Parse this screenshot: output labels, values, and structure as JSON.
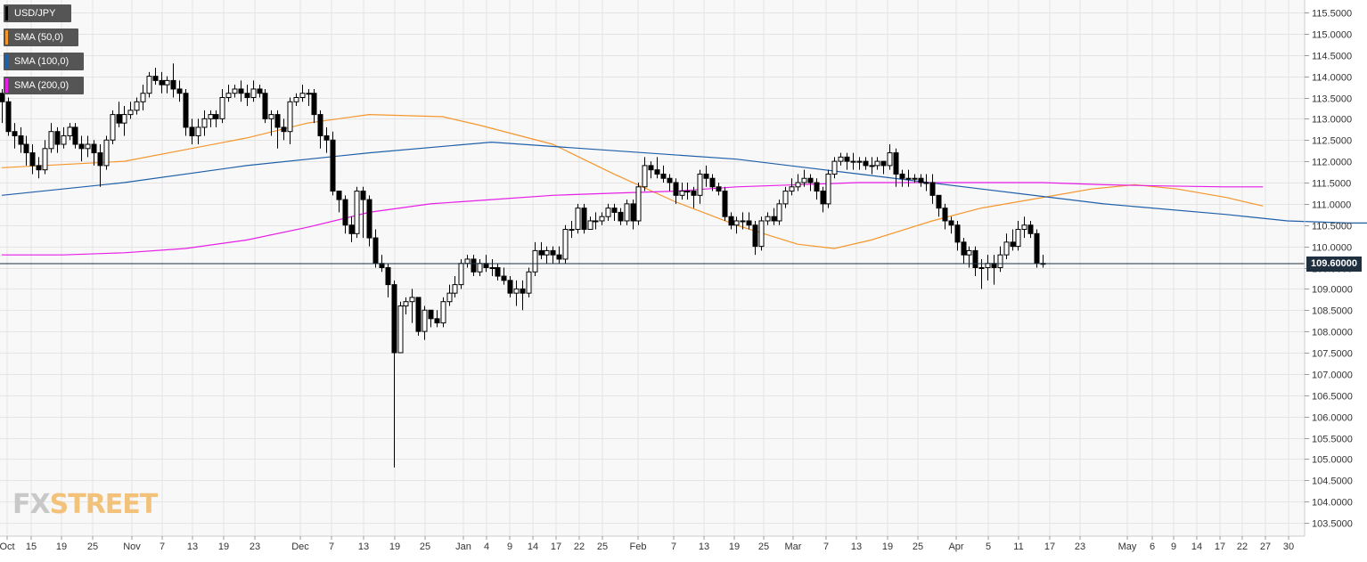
{
  "legend": [
    {
      "label": "USD/JPY",
      "color": "#000000"
    },
    {
      "label": "SMA (50,0)",
      "color": "#f5962c"
    },
    {
      "label": "SMA (100,0)",
      "color": "#1f5fa8"
    },
    {
      "label": "SMA (200,0)",
      "color": "#e61ee6"
    }
  ],
  "last_price_label": "109.60000",
  "watermark": {
    "fx": "FX",
    "street": "STREET"
  },
  "chart_data": {
    "type": "candlestick",
    "instrument": "USD/JPY",
    "ylim": [
      103.1,
      115.75
    ],
    "y_ticks": [
      "115.5000",
      "115.0000",
      "114.5000",
      "114.0000",
      "113.5000",
      "113.0000",
      "112.5000",
      "112.0000",
      "111.5000",
      "111.0000",
      "110.5000",
      "110.0000",
      "109.5000",
      "109.0000",
      "108.5000",
      "108.0000",
      "107.5000",
      "107.0000",
      "106.5000",
      "106.0000",
      "105.5000",
      "105.0000",
      "104.5000",
      "104.0000",
      "103.5000"
    ],
    "x_ticks": [
      "Oct",
      "15",
      "19",
      "25",
      "Nov",
      "7",
      "13",
      "19",
      "23",
      "Dec",
      "7",
      "13",
      "19",
      "25",
      "Jan",
      "4",
      "9",
      "14",
      "17",
      "22",
      "25",
      "Feb",
      "7",
      "13",
      "19",
      "25",
      "Mar",
      "7",
      "13",
      "19",
      "25",
      "Apr",
      "5",
      "11",
      "17",
      "23",
      "May",
      "6",
      "9",
      "14",
      "17",
      "22",
      "27",
      "30"
    ],
    "last_price": 109.6,
    "grid": true,
    "candles": [
      [
        113.6,
        113.4,
        113.7,
        112.9
      ],
      [
        113.4,
        112.7,
        113.5,
        112.6
      ],
      [
        112.7,
        112.6,
        112.9,
        112.3
      ],
      [
        112.6,
        112.4,
        112.8,
        112.2
      ],
      [
        112.4,
        112.2,
        112.6,
        111.9
      ],
      [
        112.2,
        111.9,
        112.4,
        111.7
      ],
      [
        111.9,
        111.8,
        112.1,
        111.6
      ],
      [
        111.8,
        112.3,
        112.5,
        111.7
      ],
      [
        112.3,
        112.7,
        112.9,
        112.2
      ],
      [
        112.7,
        112.4,
        112.8,
        112.2
      ],
      [
        112.4,
        112.6,
        112.8,
        112.3
      ],
      [
        112.6,
        112.8,
        112.9,
        112.5
      ],
      [
        112.8,
        112.4,
        112.9,
        112.3
      ],
      [
        112.4,
        112.3,
        112.6,
        112.0
      ],
      [
        112.3,
        112.4,
        112.6,
        112.1
      ],
      [
        112.4,
        112.2,
        112.5,
        111.9
      ],
      [
        112.2,
        111.9,
        112.4,
        111.4
      ],
      [
        111.9,
        112.5,
        112.6,
        111.8
      ],
      [
        112.5,
        113.1,
        113.2,
        112.4
      ],
      [
        113.1,
        112.9,
        113.4,
        112.8
      ],
      [
        112.9,
        113.1,
        113.3,
        112.6
      ],
      [
        113.1,
        113.2,
        113.4,
        113.0
      ],
      [
        113.2,
        113.4,
        113.5,
        113.1
      ],
      [
        113.4,
        113.6,
        113.8,
        113.2
      ],
      [
        113.6,
        114.0,
        114.1,
        113.5
      ],
      [
        114.0,
        113.9,
        114.2,
        113.8
      ],
      [
        113.9,
        113.8,
        114.1,
        113.6
      ],
      [
        113.8,
        113.9,
        114.0,
        113.6
      ],
      [
        113.9,
        113.7,
        114.3,
        113.5
      ],
      [
        113.7,
        113.6,
        113.9,
        113.4
      ],
      [
        113.6,
        112.8,
        113.7,
        112.6
      ],
      [
        112.8,
        112.6,
        113.0,
        112.4
      ],
      [
        112.6,
        112.8,
        113.0,
        112.4
      ],
      [
        112.8,
        113.0,
        113.2,
        112.6
      ],
      [
        113.0,
        113.1,
        113.2,
        112.8
      ],
      [
        113.1,
        113.0,
        113.2,
        112.8
      ],
      [
        113.0,
        113.5,
        113.7,
        112.9
      ],
      [
        113.5,
        113.6,
        113.8,
        113.4
      ],
      [
        113.6,
        113.7,
        113.8,
        113.5
      ],
      [
        113.7,
        113.6,
        113.9,
        113.4
      ],
      [
        113.6,
        113.5,
        113.8,
        113.3
      ],
      [
        113.5,
        113.7,
        113.9,
        113.4
      ],
      [
        113.7,
        113.6,
        113.8,
        113.5
      ],
      [
        113.6,
        113.0,
        113.7,
        112.9
      ],
      [
        113.0,
        113.1,
        113.2,
        112.6
      ],
      [
        113.1,
        112.8,
        113.2,
        112.3
      ],
      [
        112.8,
        112.7,
        113.0,
        112.5
      ],
      [
        112.7,
        113.4,
        113.5,
        112.4
      ],
      [
        113.4,
        113.5,
        113.6,
        113.3
      ],
      [
        113.5,
        113.6,
        113.8,
        113.4
      ],
      [
        113.6,
        113.6,
        113.7,
        113.3
      ],
      [
        113.6,
        113.1,
        113.7,
        112.9
      ],
      [
        113.1,
        112.6,
        113.2,
        112.3
      ],
      [
        112.6,
        112.5,
        112.8,
        112.2
      ],
      [
        112.5,
        111.3,
        112.7,
        111.2
      ],
      [
        111.3,
        111.1,
        111.3,
        110.8
      ],
      [
        111.1,
        110.5,
        111.2,
        110.3
      ],
      [
        110.5,
        110.3,
        110.7,
        110.1
      ],
      [
        110.3,
        111.3,
        111.4,
        110.2
      ],
      [
        111.3,
        111.1,
        111.4,
        110.2
      ],
      [
        111.1,
        110.2,
        111.2,
        110.0
      ],
      [
        110.2,
        109.6,
        110.4,
        109.5
      ],
      [
        109.6,
        109.5,
        109.8,
        109.4
      ],
      [
        109.5,
        109.1,
        109.6,
        108.8
      ],
      [
        109.1,
        107.5,
        109.2,
        104.8
      ],
      [
        107.5,
        108.6,
        108.7,
        107.5
      ],
      [
        108.6,
        108.7,
        108.8,
        108.4
      ],
      [
        108.7,
        108.8,
        109.0,
        108.2
      ],
      [
        108.8,
        108.0,
        108.8,
        107.9
      ],
      [
        108.0,
        108.5,
        108.6,
        107.8
      ],
      [
        108.5,
        108.3,
        108.5,
        108.1
      ],
      [
        108.3,
        108.2,
        108.5,
        108.1
      ],
      [
        108.2,
        108.7,
        108.8,
        108.1
      ],
      [
        108.7,
        108.9,
        109.1,
        108.6
      ],
      [
        108.9,
        109.1,
        109.3,
        108.8
      ],
      [
        109.1,
        109.6,
        109.7,
        109.0
      ],
      [
        109.6,
        109.7,
        109.8,
        109.5
      ],
      [
        109.7,
        109.4,
        109.8,
        109.3
      ],
      [
        109.4,
        109.6,
        109.7,
        109.3
      ],
      [
        109.6,
        109.5,
        109.8,
        109.4
      ],
      [
        109.5,
        109.5,
        109.7,
        109.3
      ],
      [
        109.5,
        109.3,
        109.6,
        109.2
      ],
      [
        109.3,
        109.2,
        109.5,
        109.1
      ],
      [
        109.2,
        108.9,
        109.3,
        108.8
      ],
      [
        108.9,
        109.0,
        109.2,
        108.6
      ],
      [
        109.0,
        108.9,
        109.2,
        108.5
      ],
      [
        108.9,
        109.4,
        109.5,
        108.8
      ],
      [
        109.4,
        109.9,
        110.1,
        109.3
      ],
      [
        109.9,
        109.8,
        110.1,
        109.7
      ],
      [
        109.8,
        109.9,
        110.0,
        109.6
      ],
      [
        109.9,
        109.8,
        110.0,
        109.6
      ],
      [
        109.8,
        109.7,
        110.0,
        109.6
      ],
      [
        109.7,
        110.4,
        110.5,
        109.6
      ],
      [
        110.4,
        110.4,
        110.6,
        110.2
      ],
      [
        110.4,
        110.9,
        111.0,
        110.3
      ],
      [
        110.9,
        110.4,
        111.0,
        110.3
      ],
      [
        110.4,
        110.6,
        110.7,
        110.4
      ],
      [
        110.6,
        110.6,
        110.8,
        110.4
      ],
      [
        110.6,
        110.7,
        110.8,
        110.5
      ],
      [
        110.7,
        110.9,
        111.0,
        110.6
      ],
      [
        110.9,
        110.8,
        111.0,
        110.6
      ],
      [
        110.8,
        110.6,
        110.9,
        110.5
      ],
      [
        110.6,
        111.0,
        111.1,
        110.5
      ],
      [
        111.0,
        110.6,
        111.1,
        110.4
      ],
      [
        110.6,
        111.4,
        111.5,
        110.5
      ],
      [
        111.4,
        111.9,
        112.1,
        111.3
      ],
      [
        111.9,
        111.8,
        112.0,
        111.6
      ],
      [
        111.8,
        111.7,
        112.1,
        111.6
      ],
      [
        111.7,
        111.6,
        111.9,
        111.5
      ],
      [
        111.6,
        111.5,
        111.7,
        111.3
      ],
      [
        111.5,
        111.2,
        111.6,
        111.0
      ],
      [
        111.2,
        111.3,
        111.5,
        111.1
      ],
      [
        111.3,
        111.3,
        111.5,
        111.1
      ],
      [
        111.3,
        111.2,
        111.4,
        110.9
      ],
      [
        111.2,
        111.7,
        111.8,
        111.0
      ],
      [
        111.7,
        111.6,
        111.9,
        111.4
      ],
      [
        111.6,
        111.4,
        111.7,
        111.3
      ],
      [
        111.4,
        111.3,
        111.5,
        111.2
      ],
      [
        111.3,
        110.7,
        111.4,
        110.6
      ],
      [
        110.7,
        110.5,
        110.8,
        110.4
      ],
      [
        110.5,
        110.6,
        110.7,
        110.3
      ],
      [
        110.6,
        110.6,
        110.8,
        110.4
      ],
      [
        110.6,
        110.5,
        110.8,
        110.4
      ],
      [
        110.5,
        110.0,
        110.6,
        109.8
      ],
      [
        110.0,
        110.6,
        110.7,
        109.9
      ],
      [
        110.6,
        110.7,
        110.8,
        110.5
      ],
      [
        110.7,
        110.6,
        110.9,
        110.5
      ],
      [
        110.6,
        111.0,
        111.1,
        110.5
      ],
      [
        111.0,
        111.3,
        111.4,
        110.9
      ],
      [
        111.3,
        111.4,
        111.6,
        111.2
      ],
      [
        111.4,
        111.5,
        111.7,
        111.3
      ],
      [
        111.5,
        111.6,
        111.8,
        111.4
      ],
      [
        111.6,
        111.5,
        111.7,
        111.3
      ],
      [
        111.5,
        111.3,
        111.6,
        111.1
      ],
      [
        111.3,
        111.0,
        111.4,
        110.8
      ],
      [
        111.0,
        111.7,
        111.8,
        110.9
      ],
      [
        111.7,
        112.0,
        112.1,
        111.6
      ],
      [
        112.0,
        112.1,
        112.2,
        111.9
      ],
      [
        112.1,
        112.0,
        112.2,
        111.8
      ],
      [
        112.0,
        112.0,
        112.2,
        111.8
      ],
      [
        112.0,
        112.0,
        112.1,
        111.8
      ],
      [
        112.0,
        111.9,
        112.1,
        111.8
      ],
      [
        111.9,
        111.9,
        112.1,
        111.7
      ],
      [
        111.9,
        112.0,
        112.1,
        111.8
      ],
      [
        112.0,
        111.9,
        112.0,
        111.7
      ],
      [
        111.9,
        112.2,
        112.4,
        111.8
      ],
      [
        112.2,
        111.7,
        112.3,
        111.4
      ],
      [
        111.7,
        111.6,
        111.8,
        111.4
      ],
      [
        111.6,
        111.6,
        111.8,
        111.4
      ],
      [
        111.6,
        111.6,
        111.7,
        111.5
      ],
      [
        111.6,
        111.5,
        111.7,
        111.4
      ],
      [
        111.5,
        111.5,
        111.7,
        111.3
      ],
      [
        111.5,
        111.2,
        111.7,
        111.0
      ],
      [
        111.2,
        110.9,
        111.2,
        110.7
      ],
      [
        110.9,
        110.6,
        111.0,
        110.4
      ],
      [
        110.6,
        110.5,
        110.7,
        110.3
      ],
      [
        110.5,
        110.1,
        110.6,
        109.9
      ],
      [
        110.1,
        109.8,
        110.2,
        109.6
      ],
      [
        109.8,
        109.9,
        110.0,
        109.5
      ],
      [
        109.9,
        109.5,
        110.0,
        109.3
      ],
      [
        109.5,
        109.5,
        109.7,
        109.0
      ],
      [
        109.5,
        109.6,
        109.8,
        109.2
      ],
      [
        109.6,
        109.5,
        109.8,
        109.1
      ],
      [
        109.5,
        109.8,
        110.0,
        109.4
      ],
      [
        109.8,
        110.1,
        110.3,
        109.7
      ],
      [
        110.1,
        110.0,
        110.4,
        109.9
      ],
      [
        110.0,
        110.4,
        110.6,
        109.9
      ],
      [
        110.4,
        110.5,
        110.7,
        110.2
      ],
      [
        110.5,
        110.3,
        110.6,
        110.2
      ],
      [
        110.3,
        109.6,
        110.4,
        109.5
      ],
      [
        109.6,
        109.6,
        109.8,
        109.5
      ]
    ],
    "series": [
      {
        "name": "SMA (50,0)",
        "color": "#f5962c",
        "points": [
          [
            0,
            111.85
          ],
          [
            20,
            112.0
          ],
          [
            40,
            112.55
          ],
          [
            50,
            112.9
          ],
          [
            60,
            113.1
          ],
          [
            72,
            113.05
          ],
          [
            78,
            112.85
          ],
          [
            90,
            112.4
          ],
          [
            100,
            111.7
          ],
          [
            110,
            111.05
          ],
          [
            120,
            110.5
          ],
          [
            130,
            110.05
          ],
          [
            136,
            109.95
          ],
          [
            142,
            110.15
          ],
          [
            152,
            110.6
          ],
          [
            160,
            110.9
          ],
          [
            168,
            111.1
          ],
          [
            178,
            111.35
          ],
          [
            185,
            111.45
          ],
          [
            192,
            111.35
          ],
          [
            200,
            111.15
          ],
          [
            206,
            110.95
          ]
        ]
      },
      {
        "name": "SMA (100,0)",
        "color": "#1f5fa8",
        "points": [
          [
            0,
            111.2
          ],
          [
            20,
            111.5
          ],
          [
            40,
            111.9
          ],
          [
            60,
            112.2
          ],
          [
            80,
            112.45
          ],
          [
            100,
            112.25
          ],
          [
            120,
            112.05
          ],
          [
            140,
            111.7
          ],
          [
            160,
            111.35
          ],
          [
            180,
            111.0
          ],
          [
            200,
            110.75
          ],
          [
            210,
            110.6
          ],
          [
            220,
            110.55
          ],
          [
            225,
            110.55
          ]
        ]
      },
      {
        "name": "SMA (200,0)",
        "color": "#e61ee6",
        "points": [
          [
            0,
            109.8
          ],
          [
            10,
            109.8
          ],
          [
            20,
            109.85
          ],
          [
            30,
            109.95
          ],
          [
            40,
            110.15
          ],
          [
            50,
            110.45
          ],
          [
            60,
            110.8
          ],
          [
            70,
            111.0
          ],
          [
            80,
            111.1
          ],
          [
            90,
            111.2
          ],
          [
            100,
            111.25
          ],
          [
            110,
            111.3
          ],
          [
            120,
            111.4
          ],
          [
            130,
            111.45
          ],
          [
            140,
            111.5
          ],
          [
            150,
            111.5
          ],
          [
            160,
            111.5
          ],
          [
            170,
            111.5
          ],
          [
            180,
            111.45
          ],
          [
            190,
            111.42
          ],
          [
            200,
            111.4
          ],
          [
            206,
            111.4
          ]
        ]
      }
    ]
  }
}
